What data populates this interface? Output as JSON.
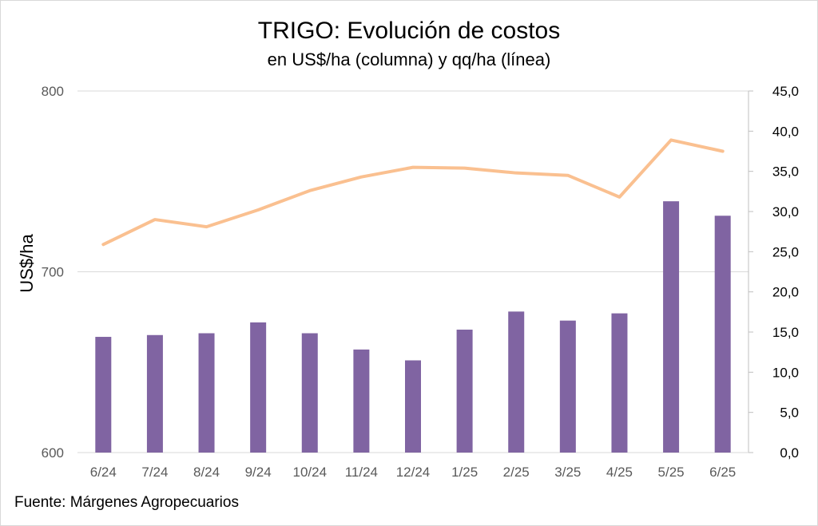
{
  "chart_data": {
    "type": "bar",
    "title": "TRIGO: Evolución de costos",
    "subtitle": "en US$/ha (columna) y qq/ha (línea)",
    "ylabel": "US$/ha",
    "source": "Fuente: Márgenes Agropecuarios",
    "categories": [
      "6/24",
      "7/24",
      "8/24",
      "9/24",
      "10/24",
      "11/24",
      "12/24",
      "1/25",
      "2/25",
      "3/25",
      "4/25",
      "5/25",
      "6/25"
    ],
    "series": [
      {
        "type": "bar",
        "axis": "left",
        "color": "#8064a2",
        "values": [
          664,
          665,
          666,
          672,
          666,
          657,
          651,
          668,
          678,
          673,
          677,
          739,
          731
        ]
      },
      {
        "type": "line",
        "axis": "right",
        "color": "#fac090",
        "values": [
          25.9,
          29.0,
          28.1,
          30.2,
          32.6,
          34.3,
          35.5,
          35.4,
          34.8,
          34.5,
          31.8,
          38.9,
          37.5
        ]
      }
    ],
    "ylim_left": [
      600,
      800
    ],
    "yticks_left": [
      "600",
      "700",
      "800"
    ],
    "ylim_right": [
      0,
      45
    ],
    "yticks_right": [
      "0,0",
      "5,0",
      "10,0",
      "15,0",
      "20,0",
      "25,0",
      "30,0",
      "35,0",
      "40,0",
      "45,0"
    ],
    "grid": true,
    "legend": "none"
  }
}
